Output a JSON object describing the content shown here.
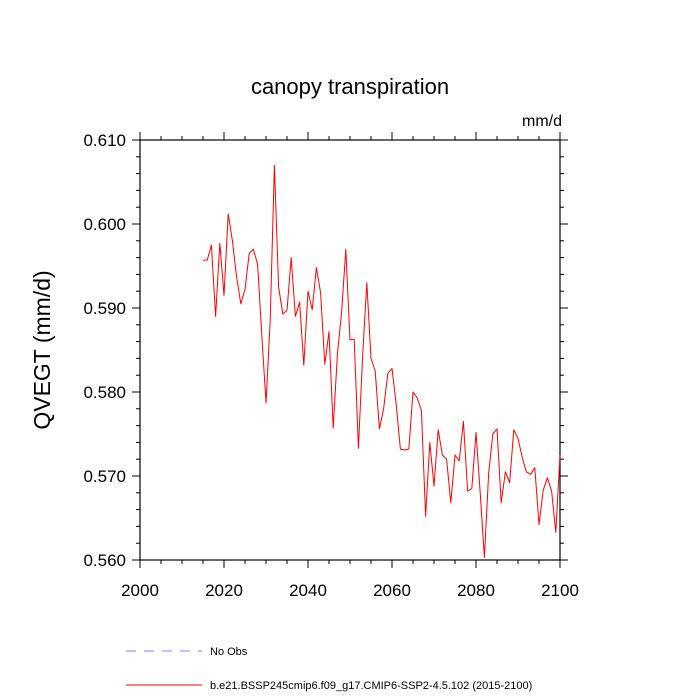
{
  "chart_data": {
    "type": "line",
    "title": "canopy transpiration",
    "units": "mm/d",
    "xlabel": "",
    "ylabel": "QVEGT  (mm/d)",
    "xlim": [
      2000,
      2100
    ],
    "ylim": [
      0.56,
      0.61
    ],
    "xticks": [
      2000,
      2020,
      2040,
      2060,
      2080,
      2100
    ],
    "xtick_labels": [
      "2000",
      "2020",
      "2040",
      "2060",
      "2080",
      "2100"
    ],
    "yticks": [
      0.56,
      0.57,
      0.58,
      0.59,
      0.6,
      0.61
    ],
    "ytick_labels": [
      "0.560",
      "0.570",
      "0.580",
      "0.590",
      "0.600",
      "0.610"
    ],
    "grid": false,
    "legend_position": "bottom-left",
    "series": [
      {
        "name": "No Obs",
        "color": "#8080ff",
        "style": "dashed",
        "x": [],
        "values": []
      },
      {
        "name": "b.e21.BSSP245cmip6.f09_g17.CMIP6-SSP2-4.5.102 (2015-2100)",
        "color": "#ff0000",
        "style": "solid",
        "x": [
          2015,
          2016,
          2017,
          2018,
          2019,
          2020,
          2021,
          2022,
          2023,
          2024,
          2025,
          2026,
          2027,
          2028,
          2029,
          2030,
          2031,
          2032,
          2033,
          2034,
          2035,
          2036,
          2037,
          2038,
          2039,
          2040,
          2041,
          2042,
          2043,
          2044,
          2045,
          2046,
          2047,
          2048,
          2049,
          2050,
          2051,
          2052,
          2053,
          2054,
          2055,
          2056,
          2057,
          2058,
          2059,
          2060,
          2061,
          2062,
          2063,
          2064,
          2065,
          2066,
          2067,
          2068,
          2069,
          2070,
          2071,
          2072,
          2073,
          2074,
          2075,
          2076,
          2077,
          2078,
          2079,
          2080,
          2081,
          2082,
          2083,
          2084,
          2085,
          2086,
          2087,
          2088,
          2089,
          2090,
          2091,
          2092,
          2093,
          2094,
          2095,
          2096,
          2097,
          2098,
          2099,
          2100
        ],
        "values": [
          0.5957,
          0.5957,
          0.5975,
          0.589,
          0.5977,
          0.5915,
          0.6012,
          0.598,
          0.5937,
          0.5905,
          0.5922,
          0.5965,
          0.597,
          0.5952,
          0.5868,
          0.5787,
          0.5885,
          0.607,
          0.5925,
          0.5893,
          0.5897,
          0.596,
          0.589,
          0.5907,
          0.5832,
          0.592,
          0.5898,
          0.5948,
          0.5918,
          0.5833,
          0.5872,
          0.5757,
          0.5845,
          0.5895,
          0.597,
          0.5862,
          0.5863,
          0.5733,
          0.5842,
          0.593,
          0.584,
          0.5825,
          0.5756,
          0.578,
          0.5822,
          0.5828,
          0.5785,
          0.5732,
          0.5731,
          0.5732,
          0.58,
          0.5793,
          0.5778,
          0.5652,
          0.574,
          0.5688,
          0.5755,
          0.5725,
          0.572,
          0.5668,
          0.5725,
          0.5718,
          0.5765,
          0.5682,
          0.5685,
          0.5752,
          0.568,
          0.5603,
          0.5702,
          0.575,
          0.5756,
          0.5668,
          0.5705,
          0.5692,
          0.5755,
          0.5745,
          0.5722,
          0.5705,
          0.5702,
          0.571,
          0.5642,
          0.5683,
          0.5698,
          0.5682,
          0.5633,
          0.5725
        ]
      }
    ]
  }
}
